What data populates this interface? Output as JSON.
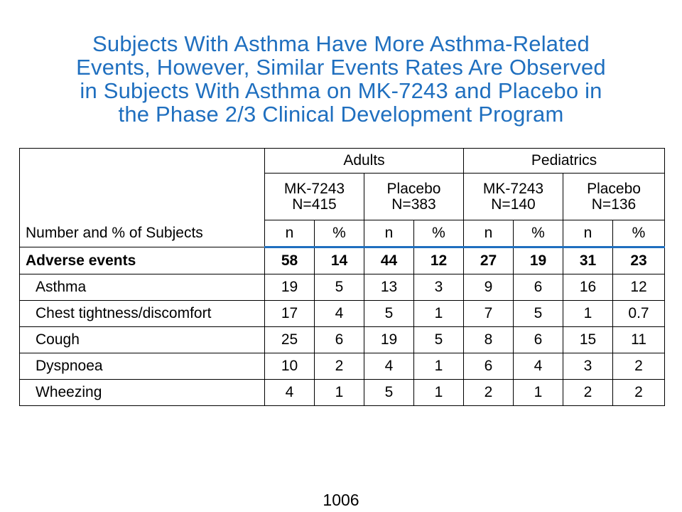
{
  "title_lines": [
    "Subjects With Asthma Have More Asthma-Related",
    "Events, However, Similar Events Rates Are Observed",
    "in Subjects With Asthma on MK-7243 and Placebo in",
    "the Phase 2/3 Clinical Development Program"
  ],
  "table": {
    "corner_label": "Number and % of Subjects",
    "groups": [
      "Adults",
      "Pediatrics"
    ],
    "arms": [
      {
        "name": "MK-7243",
        "n": "N=415"
      },
      {
        "name": "Placebo",
        "n": "N=383"
      },
      {
        "name": "MK-7243",
        "n": "N=140"
      },
      {
        "name": "Placebo",
        "n": "N=136"
      }
    ],
    "subheaders": [
      "n",
      "%",
      "n",
      "%",
      "n",
      "%",
      "n",
      "%"
    ],
    "rows": [
      {
        "label": "Adverse events",
        "values": [
          "58",
          "14",
          "44",
          "12",
          "27",
          "19",
          "31",
          "23"
        ]
      },
      {
        "label": "Asthma",
        "values": [
          "19",
          "5",
          "13",
          "3",
          "9",
          "6",
          "16",
          "12"
        ]
      },
      {
        "label": "Chest tightness/discomfort",
        "values": [
          "17",
          "4",
          "5",
          "1",
          "7",
          "5",
          "1",
          "0.7"
        ]
      },
      {
        "label": "Cough",
        "values": [
          "25",
          "6",
          "19",
          "5",
          "8",
          "6",
          "15",
          "11"
        ]
      },
      {
        "label": "Dyspnoea",
        "values": [
          "10",
          "2",
          "4",
          "1",
          "6",
          "4",
          "3",
          "2"
        ]
      },
      {
        "label": "Wheezing",
        "values": [
          "4",
          "1",
          "5",
          "1",
          "2",
          "1",
          "2",
          "2"
        ]
      }
    ]
  },
  "page_number": "1006",
  "colors": {
    "title": "#1f6fbf",
    "header_rule": "#1f6fbf"
  }
}
